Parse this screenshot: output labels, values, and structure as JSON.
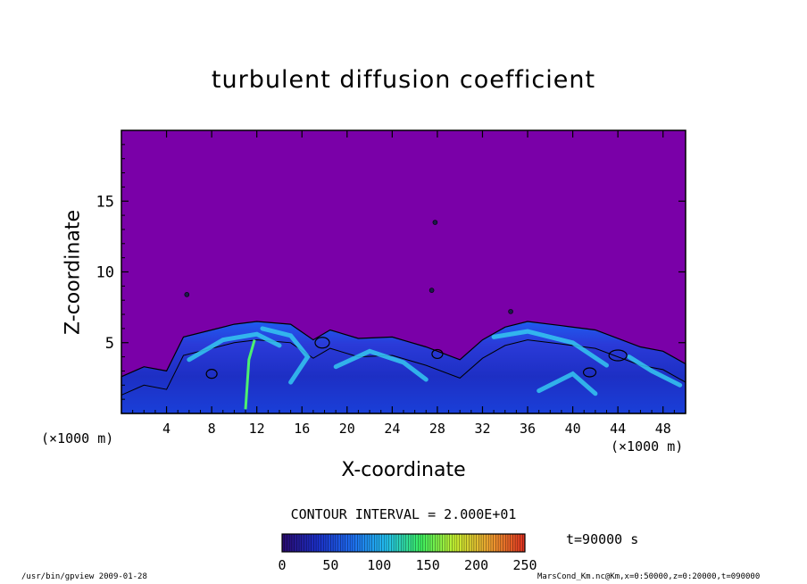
{
  "chart_data": {
    "type": "heatmap",
    "title": "turbulent diffusion coefficient",
    "xlabel": "X-coordinate",
    "ylabel": "Z-coordinate",
    "x_unit": "(×1000 m)",
    "xlim": [
      0,
      50
    ],
    "ylim": [
      0,
      20
    ],
    "x_ticks": [
      4,
      8,
      12,
      16,
      20,
      24,
      28,
      32,
      36,
      40,
      44,
      48
    ],
    "y_ticks": [
      5,
      10,
      15
    ],
    "contour_interval": "CONTOUR INTERVAL = 2.000E+01",
    "colorbar": {
      "ticks": [
        0,
        50,
        100,
        150,
        200,
        250
      ],
      "range": [
        0,
        250
      ],
      "colors": [
        "#2a0a6e",
        "#1b2fc8",
        "#1e6cf0",
        "#22c0f0",
        "#3cf060",
        "#c8f030",
        "#f0a030",
        "#e03020"
      ]
    },
    "background_color": "#7a00a8",
    "turbulent_layer_top": [
      {
        "x": 0,
        "z": 2.6
      },
      {
        "x": 2,
        "z": 3.3
      },
      {
        "x": 4,
        "z": 3.0
      },
      {
        "x": 5.5,
        "z": 5.4
      },
      {
        "x": 8,
        "z": 5.9
      },
      {
        "x": 10,
        "z": 6.3
      },
      {
        "x": 12,
        "z": 6.5
      },
      {
        "x": 15,
        "z": 6.3
      },
      {
        "x": 17,
        "z": 5.2
      },
      {
        "x": 18.5,
        "z": 5.9
      },
      {
        "x": 21,
        "z": 5.3
      },
      {
        "x": 24,
        "z": 5.4
      },
      {
        "x": 27,
        "z": 4.7
      },
      {
        "x": 30,
        "z": 3.8
      },
      {
        "x": 32,
        "z": 5.2
      },
      {
        "x": 34,
        "z": 6.1
      },
      {
        "x": 36,
        "z": 6.5
      },
      {
        "x": 39,
        "z": 6.2
      },
      {
        "x": 42,
        "z": 5.9
      },
      {
        "x": 46,
        "z": 4.7
      },
      {
        "x": 48,
        "z": 4.4
      },
      {
        "x": 50,
        "z": 3.5
      }
    ]
  },
  "time_label": "t=90000 s",
  "footer": {
    "left": "/usr/bin/gpview   2009-01-28",
    "right": "MarsCond_Km.nc@Km,x=0:50000,z=0:20000,t=090000"
  }
}
